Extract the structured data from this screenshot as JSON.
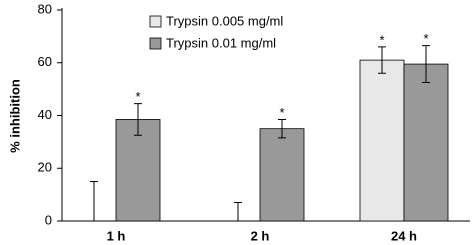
{
  "chart_data": {
    "type": "bar",
    "categories": [
      "1 h",
      "2 h",
      "24 h"
    ],
    "y_label": "% inhibition",
    "series": [
      {
        "name": "Trypsin 0.005 mg/ml",
        "color": "#e8e8e8",
        "values": [
          0,
          0,
          61
        ],
        "errors": [
          15,
          7,
          5
        ],
        "significance": [
          null,
          null,
          "*"
        ]
      },
      {
        "name": "Trypsin 0.01 mg/ml",
        "color": "#999999",
        "values": [
          38.5,
          35,
          59.5
        ],
        "errors": [
          6,
          3.5,
          7
        ],
        "significance": [
          "*",
          "*",
          "*"
        ]
      }
    ],
    "ylim": [
      0,
      80
    ],
    "yticks": [
      0,
      20,
      40,
      60,
      80
    ],
    "grid": false,
    "legend": "top-left"
  }
}
